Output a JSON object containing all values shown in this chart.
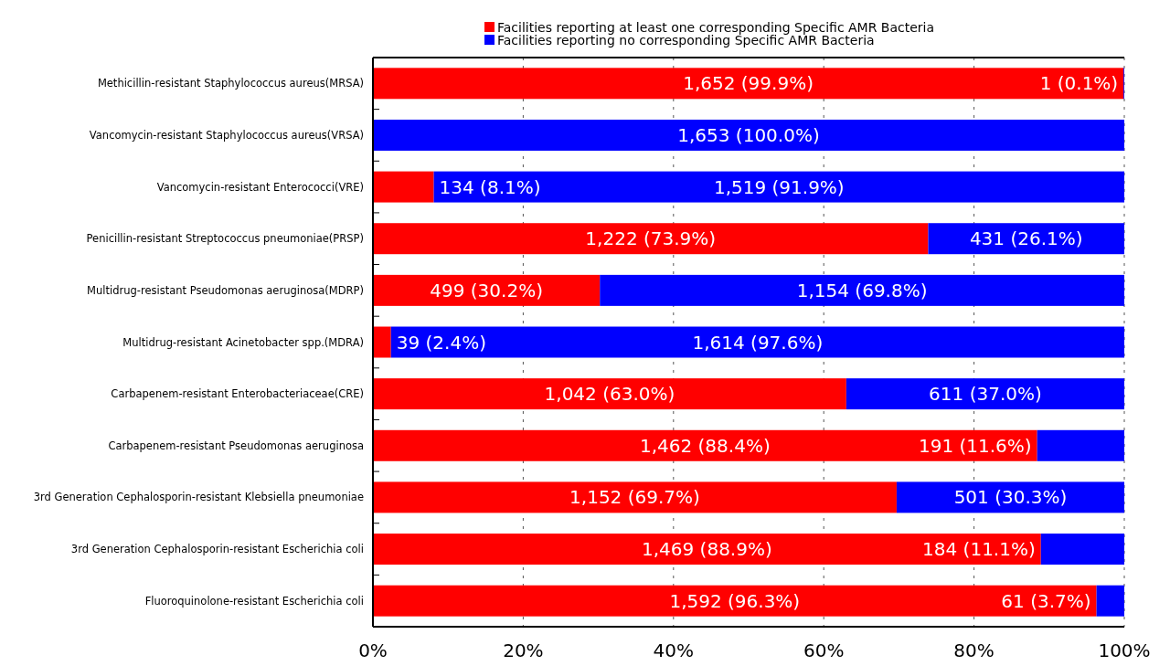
{
  "chart_data": {
    "type": "bar",
    "orientation": "horizontal",
    "stacked": true,
    "categories": [
      "Methicillin-resistant Staphylococcus aureus(MRSA)",
      "Vancomycin-resistant Staphylococcus aureus(VRSA)",
      "Vancomycin-resistant Enterococci(VRE)",
      "Penicillin-resistant Streptococcus pneumoniae(PRSP)",
      "Multidrug-resistant Pseudomonas aeruginosa(MDRP)",
      "Multidrug-resistant Acinetobacter spp.(MDRA)",
      "Carbapenem-resistant Enterobacteriaceae(CRE)",
      "Carbapenem-resistant Pseudomonas aeruginosa",
      "3rd Generation Cephalosporin-resistant Klebsiella pneumoniae",
      "3rd Generation Cephalosporin-resistant Escherichia coli",
      "Fluoroquinolone-resistant Escherichia coli"
    ],
    "series": [
      {
        "name": "Facilities reporting at least one corresponding Specific AMR Bacteria",
        "color": "#ff0000",
        "values": [
          99.9,
          0,
          8.1,
          73.9,
          30.2,
          2.4,
          63.0,
          88.4,
          69.7,
          88.9,
          96.3
        ],
        "value_labels": [
          "1,652 (99.9%)",
          null,
          "134 (8.1%)",
          "1,222 (73.9%)",
          "499 (30.2%)",
          "39 (2.4%)",
          "1,042 (63.0%)",
          "1,462 (88.4%)",
          "1,152 (69.7%)",
          "1,469 (88.9%)",
          "1,592 (96.3%)"
        ]
      },
      {
        "name": "Facilities reporting no corresponding Specific AMR Bacteria",
        "color": "#0000ff",
        "values": [
          0.1,
          100,
          91.9,
          26.1,
          69.8,
          97.6,
          37.0,
          11.6,
          30.3,
          11.1,
          3.7
        ],
        "value_labels": [
          "1 (0.1%)",
          "1,653 (100.0%)",
          "1,519 (91.9%)",
          "431 (26.1%)",
          "1,154 (69.8%)",
          "1,614 (97.6%)",
          "611 (37.0%)",
          "191 (11.6%)",
          "501 (30.3%)",
          "184 (11.1%)",
          "61 (3.7%)"
        ]
      }
    ],
    "xlim": [
      0,
      100
    ],
    "xticks": [
      {
        "value": 0,
        "label": "0%"
      },
      {
        "value": 20,
        "label": "20%"
      },
      {
        "value": 40,
        "label": "40%"
      },
      {
        "value": 60,
        "label": "60%"
      },
      {
        "value": 80,
        "label": "80%"
      },
      {
        "value": 100,
        "label": "100%"
      }
    ],
    "grid": "x",
    "legend": "top"
  }
}
